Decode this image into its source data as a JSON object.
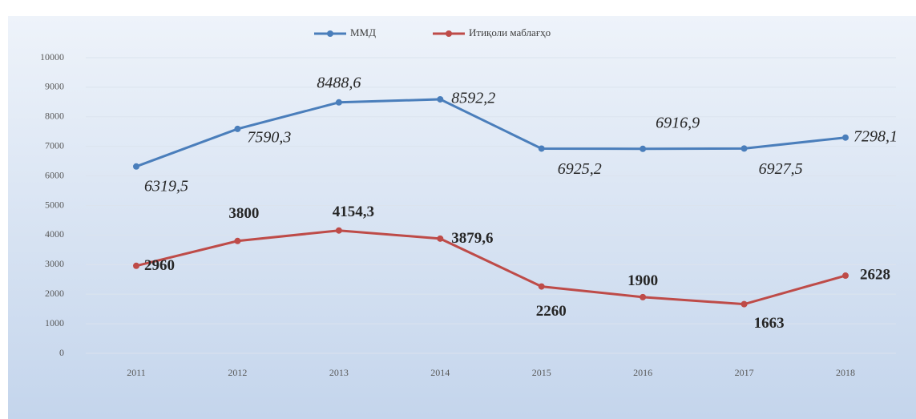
{
  "chart_data": {
    "type": "line",
    "categories": [
      "2011",
      "2012",
      "2013",
      "2014",
      "2015",
      "2016",
      "2017",
      "2018"
    ],
    "series": [
      {
        "name": "ММД",
        "color": "#4a7ebb",
        "values": [
          6319.5,
          7590.3,
          8488.6,
          8592.2,
          6925.2,
          6916.9,
          6927.5,
          7298.1
        ],
        "value_labels": [
          "6319,5",
          "7590,3",
          "8488,6",
          "8592,2",
          "6925,2",
          "6916,9",
          "6927,5",
          "7298,1"
        ]
      },
      {
        "name": "Итиқоли маблағҳо",
        "color": "#be4b48",
        "values": [
          2960,
          3800,
          4154.3,
          3879.6,
          2260,
          1900,
          1663,
          2628
        ],
        "value_labels": [
          "2960",
          "3800",
          "4154,3",
          "3879,6",
          "2260",
          "1900",
          "1663",
          "2628"
        ]
      }
    ],
    "ylim": [
      0,
      10000
    ],
    "yticks": [
      0,
      1000,
      2000,
      3000,
      4000,
      5000,
      6000,
      7000,
      8000,
      9000,
      10000
    ],
    "grid": true,
    "legend": "top"
  }
}
